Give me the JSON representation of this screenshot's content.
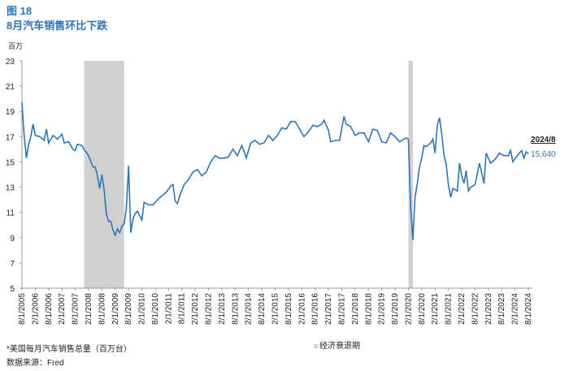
{
  "chart_data": {
    "type": "line",
    "title": "图 18",
    "subtitle": "8月汽车销售环比下跌",
    "y_unit": "百万",
    "note": "*美国每月汽车销售总量（百万台）",
    "source": "数据来源：Fred",
    "recession_label": "经济衰退期",
    "recession_color": "#d0d0d0",
    "recessions": [
      {
        "start": "12/1/2007",
        "end": "6/1/2009"
      },
      {
        "start": "2/1/2020",
        "end": "4/1/2020"
      }
    ],
    "annotation": {
      "date": "2024/8",
      "value": 15.64,
      "label": "15,640"
    },
    "ylim": [
      5,
      23
    ],
    "yticks": [
      5,
      7,
      9,
      11,
      13,
      15,
      17,
      19,
      21,
      23
    ],
    "xlim": [
      "8/1/2005",
      "8/1/2024"
    ],
    "xticks": [
      "8/1/2005",
      "2/1/2006",
      "8/1/2006",
      "2/1/2007",
      "8/1/2007",
      "2/1/2008",
      "8/1/2008",
      "2/1/2009",
      "8/1/2009",
      "2/1/2010",
      "8/1/2010",
      "2/1/2011",
      "8/1/2011",
      "2/1/2012",
      "8/1/2012",
      "2/1/2013",
      "8/1/2013",
      "2/1/2014",
      "8/1/2014",
      "2/1/2015",
      "8/1/2015",
      "2/1/2016",
      "8/1/2016",
      "2/1/2017",
      "8/1/2017",
      "2/1/2018",
      "8/1/2018",
      "2/1/2019",
      "8/1/2019",
      "2/1/2020",
      "8/1/2020",
      "2/1/2021",
      "8/1/2021",
      "2/1/2022",
      "8/1/2022",
      "2/1/2023",
      "8/1/2023",
      "2/1/2024",
      "8/1/2024"
    ],
    "x": [
      "8/1/2005",
      "9/1/2005",
      "10/1/2005",
      "11/1/2005",
      "12/1/2005",
      "1/1/2006",
      "2/1/2006",
      "4/1/2006",
      "6/1/2006",
      "7/1/2006",
      "8/1/2006",
      "10/1/2006",
      "12/1/2006",
      "2/1/2007",
      "3/1/2007",
      "5/1/2007",
      "7/1/2007",
      "8/1/2007",
      "9/1/2007",
      "11/1/2007",
      "12/1/2007",
      "2/1/2008",
      "4/1/2008",
      "5/1/2008",
      "6/1/2008",
      "7/1/2008",
      "8/1/2008",
      "9/1/2008",
      "10/1/2008",
      "11/1/2008",
      "12/1/2008",
      "1/1/2009",
      "2/1/2009",
      "3/1/2009",
      "4/1/2009",
      "5/1/2009",
      "6/1/2009",
      "7/1/2009",
      "8/1/2009",
      "9/1/2009",
      "10/1/2009",
      "11/1/2009",
      "12/1/2009",
      "2/1/2010",
      "3/1/2010",
      "5/1/2010",
      "7/1/2010",
      "9/1/2010",
      "11/1/2010",
      "1/1/2011",
      "3/1/2011",
      "4/1/2011",
      "5/1/2011",
      "6/1/2011",
      "7/1/2011",
      "9/1/2011",
      "11/1/2011",
      "1/1/2012",
      "3/1/2012",
      "5/1/2012",
      "7/1/2012",
      "9/1/2012",
      "11/1/2012",
      "1/1/2013",
      "3/1/2013",
      "5/1/2013",
      "7/1/2013",
      "9/1/2013",
      "11/1/2013",
      "1/1/2014",
      "3/1/2014",
      "5/1/2014",
      "7/1/2014",
      "9/1/2014",
      "11/1/2014",
      "1/1/2015",
      "3/1/2015",
      "5/1/2015",
      "7/1/2015",
      "9/1/2015",
      "11/1/2015",
      "1/1/2016",
      "3/1/2016",
      "5/1/2016",
      "7/1/2016",
      "9/1/2016",
      "11/1/2016",
      "12/1/2016",
      "2/1/2017",
      "3/1/2017",
      "5/1/2017",
      "7/1/2017",
      "9/1/2017",
      "10/1/2017",
      "12/1/2017",
      "2/1/2018",
      "4/1/2018",
      "6/1/2018",
      "8/1/2018",
      "10/1/2018",
      "12/1/2018",
      "2/1/2019",
      "4/1/2019",
      "6/1/2019",
      "8/1/2019",
      "10/1/2019",
      "12/1/2019",
      "1/1/2020",
      "2/1/2020",
      "3/1/2020",
      "4/1/2020",
      "5/1/2020",
      "6/1/2020",
      "7/1/2020",
      "8/1/2020",
      "9/1/2020",
      "10/1/2020",
      "12/1/2020",
      "1/1/2021",
      "2/1/2021",
      "3/1/2021",
      "4/1/2021",
      "5/1/2021",
      "6/1/2021",
      "7/1/2021",
      "8/1/2021",
      "9/1/2021",
      "10/1/2021",
      "11/1/2021",
      "12/1/2021",
      "1/1/2022",
      "2/1/2022",
      "3/1/2022",
      "4/1/2022",
      "5/1/2022",
      "6/1/2022",
      "8/1/2022",
      "10/1/2022",
      "12/1/2022",
      "1/1/2023",
      "3/1/2023",
      "5/1/2023",
      "7/1/2023",
      "9/1/2023",
      "11/1/2023",
      "12/1/2023",
      "1/1/2024",
      "3/1/2024",
      "5/1/2024",
      "6/1/2024",
      "7/1/2024",
      "8/1/2024"
    ],
    "series": [
      {
        "color": "#2e75b6",
        "values": [
          19.7,
          17.1,
          15.3,
          16.4,
          17.0,
          18.0,
          17.1,
          17.0,
          16.7,
          17.6,
          16.5,
          17.1,
          16.8,
          17.2,
          16.5,
          16.6,
          16.0,
          15.9,
          16.4,
          16.3,
          16.0,
          15.5,
          14.6,
          14.6,
          13.9,
          12.9,
          14.0,
          12.8,
          10.9,
          10.3,
          10.3,
          9.6,
          9.2,
          9.7,
          9.4,
          9.9,
          10.1,
          11.3,
          14.7,
          9.4,
          10.5,
          10.9,
          11.1,
          10.4,
          11.8,
          11.6,
          11.6,
          12.0,
          12.3,
          12.6,
          13.1,
          13.2,
          11.9,
          11.7,
          12.3,
          13.2,
          13.6,
          14.2,
          14.4,
          13.9,
          14.2,
          15.0,
          15.5,
          15.3,
          15.3,
          15.4,
          16.0,
          15.5,
          16.3,
          15.3,
          16.5,
          16.7,
          16.4,
          16.5,
          17.1,
          16.7,
          17.1,
          17.7,
          17.6,
          18.2,
          18.2,
          17.6,
          17.0,
          17.4,
          17.9,
          17.8,
          18.0,
          18.3,
          17.5,
          16.6,
          16.7,
          16.7,
          18.6,
          18.0,
          17.8,
          17.1,
          17.3,
          17.3,
          16.6,
          17.6,
          17.5,
          16.6,
          16.5,
          17.3,
          17.0,
          16.6,
          16.8,
          16.9,
          16.8,
          11.4,
          8.8,
          12.2,
          13.3,
          14.6,
          15.3,
          16.3,
          16.2,
          16.5,
          16.8,
          15.7,
          17.9,
          18.5,
          17.2,
          15.6,
          14.8,
          13.2,
          12.2,
          12.9,
          12.8,
          12.7,
          14.9,
          13.9,
          13.3,
          14.3,
          12.7,
          13.0,
          13.2,
          14.9,
          13.3,
          15.7,
          14.9,
          15.2,
          15.7,
          15.5,
          15.5,
          15.9,
          15.0,
          15.5,
          15.9,
          15.3,
          15.8,
          15.64
        ]
      }
    ]
  }
}
